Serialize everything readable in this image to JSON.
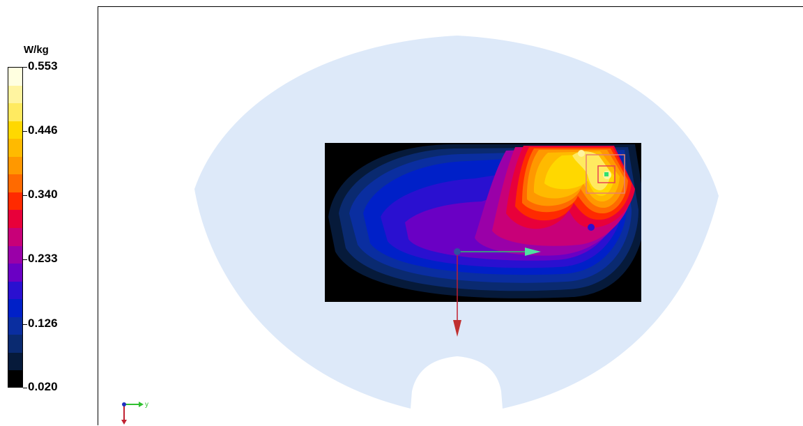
{
  "chart_data": {
    "type": "heatmap",
    "colorbar": {
      "unit": "W/kg",
      "min": 0.02,
      "max": 0.553,
      "tick_labels": [
        "0.553",
        "0.446",
        "0.340",
        "0.233",
        "0.126",
        "0.020"
      ],
      "tick_values": [
        0.553,
        0.446,
        0.34,
        0.233,
        0.126,
        0.02
      ],
      "colors_top_to_bottom": [
        "#ffffe0",
        "#fff4a0",
        "#ffea60",
        "#ffd800",
        "#ffba00",
        "#ff9800",
        "#ff6a00",
        "#ff2a00",
        "#e8003a",
        "#c80078",
        "#9a00a8",
        "#6a00c4",
        "#2a10d0",
        "#0020c8",
        "#0a2ea0",
        "#0a2a70",
        "#061a3a",
        "#000000"
      ]
    },
    "peak_marker": "square-box",
    "axis_triad_labels": [
      "y"
    ]
  }
}
